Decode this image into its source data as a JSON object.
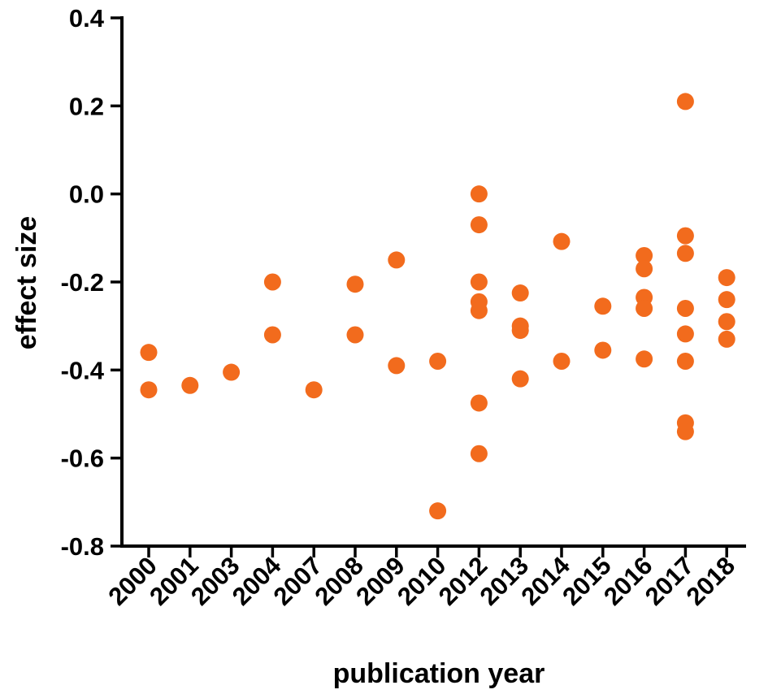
{
  "chart_data": {
    "type": "scatter",
    "title": "",
    "xlabel": "publication year",
    "ylabel": "effect size",
    "categories": [
      "2000",
      "2001",
      "2003",
      "2004",
      "2007",
      "2008",
      "2009",
      "2010",
      "2012",
      "2013",
      "2014",
      "2015",
      "2016",
      "2017",
      "2018"
    ],
    "ylim": [
      -0.8,
      0.4
    ],
    "yticks": [
      0.4,
      0.2,
      0.0,
      -0.2,
      -0.4,
      -0.6,
      -0.8
    ],
    "ytick_labels": [
      "0.4",
      "0.2",
      "0.0",
      "-0.2",
      "-0.4",
      "-0.6",
      "-0.8"
    ],
    "grid": false,
    "marker_color": "#f26b1d",
    "points": [
      {
        "x": "2000",
        "y": -0.36
      },
      {
        "x": "2000",
        "y": -0.445
      },
      {
        "x": "2001",
        "y": -0.435
      },
      {
        "x": "2003",
        "y": -0.405
      },
      {
        "x": "2004",
        "y": -0.2
      },
      {
        "x": "2004",
        "y": -0.32
      },
      {
        "x": "2007",
        "y": -0.445
      },
      {
        "x": "2008",
        "y": -0.205
      },
      {
        "x": "2008",
        "y": -0.32
      },
      {
        "x": "2009",
        "y": -0.15
      },
      {
        "x": "2009",
        "y": -0.39
      },
      {
        "x": "2010",
        "y": -0.38
      },
      {
        "x": "2010",
        "y": -0.72
      },
      {
        "x": "2012",
        "y": 0.0
      },
      {
        "x": "2012",
        "y": -0.07
      },
      {
        "x": "2012",
        "y": -0.2
      },
      {
        "x": "2012",
        "y": -0.245
      },
      {
        "x": "2012",
        "y": -0.265
      },
      {
        "x": "2012",
        "y": -0.475
      },
      {
        "x": "2012",
        "y": -0.59
      },
      {
        "x": "2013",
        "y": -0.225
      },
      {
        "x": "2013",
        "y": -0.3
      },
      {
        "x": "2013",
        "y": -0.31
      },
      {
        "x": "2013",
        "y": -0.42
      },
      {
        "x": "2014",
        "y": -0.108
      },
      {
        "x": "2014",
        "y": -0.38
      },
      {
        "x": "2015",
        "y": -0.255
      },
      {
        "x": "2015",
        "y": -0.355
      },
      {
        "x": "2016",
        "y": -0.14
      },
      {
        "x": "2016",
        "y": -0.17
      },
      {
        "x": "2016",
        "y": -0.235
      },
      {
        "x": "2016",
        "y": -0.26
      },
      {
        "x": "2016",
        "y": -0.375
      },
      {
        "x": "2017",
        "y": 0.21
      },
      {
        "x": "2017",
        "y": -0.095
      },
      {
        "x": "2017",
        "y": -0.135
      },
      {
        "x": "2017",
        "y": -0.26
      },
      {
        "x": "2017",
        "y": -0.318
      },
      {
        "x": "2017",
        "y": -0.38
      },
      {
        "x": "2017",
        "y": -0.52
      },
      {
        "x": "2017",
        "y": -0.54
      },
      {
        "x": "2018",
        "y": -0.19
      },
      {
        "x": "2018",
        "y": -0.24
      },
      {
        "x": "2018",
        "y": -0.29
      },
      {
        "x": "2018",
        "y": -0.33
      }
    ]
  }
}
